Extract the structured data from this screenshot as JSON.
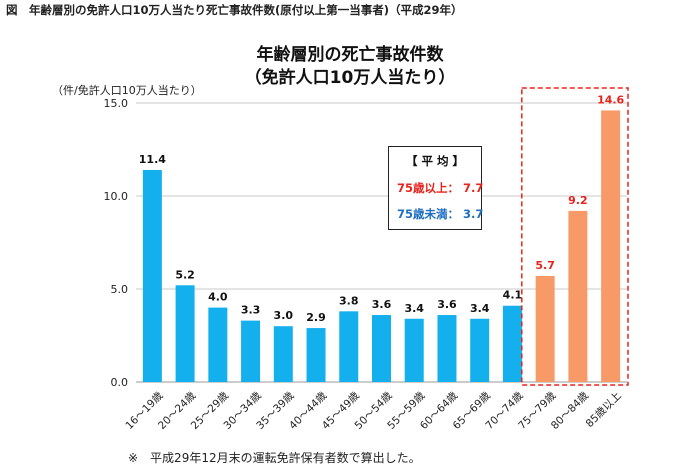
{
  "figure_caption": "図　年齢層別の免許人口10万人当たり死亡事故件数(原付以上第一当事者)（平成29年）",
  "title_line1": "年齢層別の死亡事故件数",
  "title_line2": "（免許人口10万人当たり）",
  "unit_label": "（件/免許人口10万人当たり）",
  "footnote": "※　平成29年12月末の運転免許保有者数で算出した。",
  "legend": {
    "title": "【 平 均 】",
    "row1": "75歳以上： 7.7",
    "row2": "75歳未満： 3.7"
  },
  "colors": {
    "under75": "#14b0ee",
    "over75": "#f79a68",
    "over75_label": "#e8231c",
    "under75_label": "#1f6fc2",
    "highlight_border": "#e8231c"
  },
  "chart_data": {
    "type": "bar",
    "categories": [
      "16～19歳",
      "20～24歳",
      "25～29歳",
      "30～34歳",
      "35～39歳",
      "40～44歳",
      "45～49歳",
      "50～54歳",
      "55～59歳",
      "60～64歳",
      "65～69歳",
      "70～74歳",
      "75～79歳",
      "80～84歳",
      "85歳以上"
    ],
    "values": [
      11.4,
      5.2,
      4.0,
      3.3,
      3.0,
      2.9,
      3.8,
      3.6,
      3.4,
      3.6,
      3.4,
      4.1,
      5.7,
      9.2,
      14.6
    ],
    "value_labels": [
      "11.4",
      "5.2",
      "4.0",
      "3.3",
      "3.0",
      "2.9",
      "3.8",
      "3.6",
      "3.4",
      "3.6",
      "3.4",
      "4.1",
      "5.7",
      "9.2",
      "14.6"
    ],
    "highlight_from_index": 12,
    "ylim": [
      0,
      15
    ],
    "yticks": [
      0,
      5,
      10,
      15
    ],
    "ytick_labels": [
      "0.0",
      "5.0",
      "10.0",
      "15.0"
    ],
    "grid": true
  }
}
